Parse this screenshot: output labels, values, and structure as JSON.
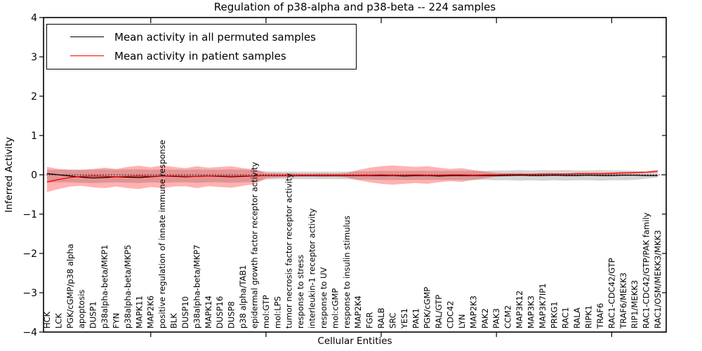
{
  "figure": {
    "background": "#ffffff"
  },
  "legend": {
    "entries": [
      {
        "label": "Mean activity in all permuted samples",
        "color": "#000000"
      },
      {
        "label": "Mean activity in patient samples",
        "color": "#ff0000"
      }
    ]
  },
  "chart_data": {
    "type": "line",
    "title": "Regulation of p38-alpha and p38-beta -- 224 samples",
    "xlabel": "Cellular Entities",
    "ylabel": "Inferred Activity",
    "ylim": [
      -4,
      4
    ],
    "grid": false,
    "legend_position": "upper left",
    "yticks": [
      {
        "value": 4,
        "label": "4"
      },
      {
        "value": 3,
        "label": "3"
      },
      {
        "value": 2,
        "label": "2"
      },
      {
        "value": 1,
        "label": "1"
      },
      {
        "value": 0,
        "label": "0"
      },
      {
        "value": -1,
        "label": "−1"
      },
      {
        "value": -2,
        "label": "−2"
      },
      {
        "value": -3,
        "label": "−3"
      },
      {
        "value": -4,
        "label": "−4"
      }
    ],
    "xticks": [
      {
        "value": 10
      },
      {
        "value": 20
      },
      {
        "value": 30
      },
      {
        "value": 40
      },
      {
        "value": 50
      }
    ],
    "zero_line": {
      "value": 0,
      "style": "dotted",
      "color": "#000000"
    },
    "categories": [
      "HCK",
      "LCK",
      "PGK/cGMP/p38 alpha",
      "apoptosis",
      "DUSP1",
      "p38alpha-beta/MKP1",
      "FYN",
      "p38alpha-beta/MKP5",
      "MAPK11",
      "MAP2K6",
      "positive regulation of innate immune response",
      "BLK",
      "DUSP10",
      "p38alpha-beta/MKP7",
      "MAPK14",
      "DUSP16",
      "DUSP8",
      "p38 alpha/TAB1",
      "epidermal growth factor receptor activity",
      "mol:GTP",
      "mol:LPS",
      "tumor necrosis factor receptor activity",
      "response to stress",
      "interleukin-1 receptor activity",
      "response to UV",
      "mol:cGMP",
      "response to insulin stimulus",
      "MAP2K4",
      "FGR",
      "RALB",
      "SRC",
      "YES1",
      "PAK1",
      "PGK/cGMP",
      "RAL/GTP",
      "CDC42",
      "LYN",
      "MAP2K3",
      "PAK2",
      "PAK3",
      "CCM2",
      "MAP3K12",
      "MAP3K3",
      "MAP3K7IP1",
      "PRKG1",
      "RAC1",
      "RALA",
      "RIPK1",
      "TRAF6",
      "RAC1-CDC42/GTP",
      "TRAF6/MEKK3",
      "RIP1/MEKK3",
      "RAC1-CDC42/GTP/PAK family",
      "RAC1/OSM/MEKK3/MKK3"
    ],
    "series": [
      {
        "name": "Mean activity in all permuted samples",
        "color": "#000000",
        "band_color": "#aaaaaa",
        "band_opacity": 0.5,
        "values": [
          0.03,
          0.0,
          -0.03,
          -0.06,
          -0.08,
          -0.07,
          -0.05,
          -0.06,
          -0.07,
          -0.05,
          -0.03,
          -0.04,
          -0.05,
          -0.04,
          -0.03,
          -0.04,
          -0.05,
          -0.04,
          -0.03,
          -0.02,
          -0.02,
          -0.02,
          -0.02,
          -0.02,
          -0.02,
          -0.02,
          -0.02,
          -0.02,
          -0.02,
          -0.02,
          -0.02,
          -0.03,
          -0.02,
          -0.02,
          -0.03,
          -0.02,
          -0.02,
          -0.02,
          -0.02,
          -0.02,
          -0.02,
          -0.01,
          -0.02,
          -0.02,
          -0.01,
          -0.02,
          -0.02,
          -0.01,
          -0.02,
          -0.02,
          -0.01,
          -0.01,
          -0.02,
          -0.02
        ],
        "band_upper": [
          0.12,
          0.13,
          0.13,
          0.14,
          0.13,
          0.14,
          0.13,
          0.14,
          0.14,
          0.13,
          0.14,
          0.13,
          0.13,
          0.14,
          0.13,
          0.13,
          0.14,
          0.13,
          0.12,
          0.09,
          0.08,
          0.08,
          0.08,
          0.08,
          0.08,
          0.08,
          0.08,
          0.09,
          0.09,
          0.1,
          0.1,
          0.1,
          0.1,
          0.1,
          0.1,
          0.1,
          0.1,
          0.1,
          0.1,
          0.11,
          0.11,
          0.12,
          0.11,
          0.12,
          0.11,
          0.12,
          0.11,
          0.11,
          0.12,
          0.11,
          0.11,
          0.1,
          0.08,
          0.06
        ],
        "band_lower": [
          -0.2,
          -0.19,
          -0.19,
          -0.2,
          -0.21,
          -0.2,
          -0.19,
          -0.2,
          -0.21,
          -0.19,
          -0.2,
          -0.19,
          -0.19,
          -0.2,
          -0.19,
          -0.19,
          -0.2,
          -0.19,
          -0.18,
          -0.12,
          -0.11,
          -0.11,
          -0.11,
          -0.11,
          -0.11,
          -0.11,
          -0.11,
          -0.12,
          -0.12,
          -0.13,
          -0.13,
          -0.13,
          -0.13,
          -0.13,
          -0.13,
          -0.13,
          -0.13,
          -0.13,
          -0.13,
          -0.14,
          -0.14,
          -0.15,
          -0.14,
          -0.15,
          -0.14,
          -0.15,
          -0.14,
          -0.14,
          -0.15,
          -0.14,
          -0.14,
          -0.13,
          -0.1,
          -0.07
        ]
      },
      {
        "name": "Mean activity in patient samples",
        "color": "#ff0000",
        "band_color": "#ff0000",
        "band_opacity": 0.3,
        "values": [
          -0.18,
          -0.12,
          -0.07,
          -0.04,
          -0.03,
          -0.04,
          -0.05,
          -0.04,
          -0.03,
          -0.04,
          -0.03,
          -0.03,
          -0.04,
          -0.04,
          -0.03,
          -0.03,
          -0.04,
          -0.03,
          -0.03,
          -0.02,
          -0.02,
          -0.02,
          -0.01,
          -0.01,
          -0.01,
          -0.01,
          -0.01,
          -0.01,
          -0.01,
          0.0,
          -0.01,
          -0.01,
          0.0,
          -0.01,
          -0.01,
          0.0,
          0.0,
          -0.01,
          0.0,
          0.0,
          0.01,
          0.01,
          0.01,
          0.02,
          0.02,
          0.02,
          0.03,
          0.03,
          0.03,
          0.04,
          0.05,
          0.06,
          0.07,
          0.09
        ],
        "band_upper": [
          0.2,
          0.15,
          0.13,
          0.12,
          0.15,
          0.18,
          0.15,
          0.2,
          0.23,
          0.19,
          0.24,
          0.2,
          0.17,
          0.22,
          0.18,
          0.2,
          0.22,
          0.17,
          0.14,
          0.05,
          0.04,
          0.04,
          0.03,
          0.03,
          0.04,
          0.03,
          0.05,
          0.12,
          0.18,
          0.22,
          0.24,
          0.22,
          0.2,
          0.22,
          0.18,
          0.15,
          0.17,
          0.12,
          0.08,
          0.05,
          0.04,
          0.04,
          0.03,
          0.04,
          0.04,
          0.03,
          0.04,
          0.04,
          0.04,
          0.05,
          0.05,
          0.06,
          0.08,
          0.13
        ],
        "band_lower": [
          -0.44,
          -0.36,
          -0.3,
          -0.28,
          -0.32,
          -0.34,
          -0.3,
          -0.34,
          -0.36,
          -0.31,
          -0.34,
          -0.3,
          -0.29,
          -0.34,
          -0.29,
          -0.31,
          -0.33,
          -0.28,
          -0.24,
          -0.09,
          -0.07,
          -0.06,
          -0.05,
          -0.05,
          -0.06,
          -0.05,
          -0.07,
          -0.14,
          -0.19,
          -0.23,
          -0.25,
          -0.23,
          -0.21,
          -0.23,
          -0.19,
          -0.16,
          -0.18,
          -0.13,
          -0.09,
          -0.05,
          -0.03,
          -0.02,
          -0.02,
          -0.01,
          -0.01,
          -0.01,
          -0.01,
          -0.01,
          -0.01,
          0.0,
          0.01,
          0.02,
          0.04,
          0.06
        ]
      }
    ]
  }
}
